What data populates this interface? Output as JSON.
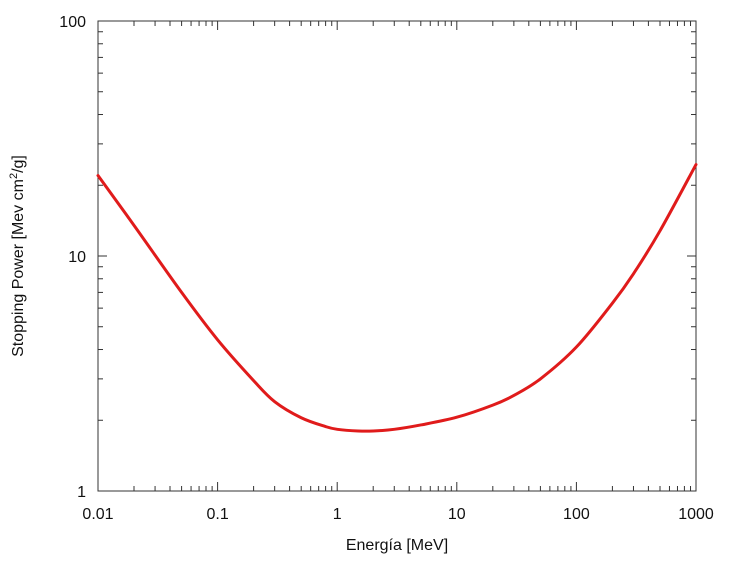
{
  "chart_data": {
    "type": "line",
    "title": "",
    "xlabel": "Energía [MeV]",
    "ylabel": {
      "main": "Stopping Power [Mev cm",
      "sup": "2",
      "tail": "/g]"
    },
    "x_scale": "log",
    "y_scale": "log",
    "xlim": [
      0.01,
      1000
    ],
    "ylim": [
      1,
      100
    ],
    "x_ticks": [
      0.01,
      0.1,
      1,
      10,
      100,
      1000
    ],
    "x_tick_labels": [
      "0.01",
      "0.1",
      "1",
      "10",
      "100",
      "1000"
    ],
    "y_ticks": [
      1,
      10,
      100
    ],
    "y_tick_labels": [
      "1",
      "10",
      "100"
    ],
    "grid": false,
    "legend": "none",
    "line_color": "#e01b1b",
    "series": [
      {
        "points": [
          [
            0.01,
            22.0
          ],
          [
            0.02,
            13.5
          ],
          [
            0.05,
            7.0
          ],
          [
            0.1,
            4.4
          ],
          [
            0.2,
            2.95
          ],
          [
            0.3,
            2.4
          ],
          [
            0.5,
            2.05
          ],
          [
            0.8,
            1.88
          ],
          [
            1.0,
            1.83
          ],
          [
            1.5,
            1.8
          ],
          [
            2.0,
            1.8
          ],
          [
            3.0,
            1.83
          ],
          [
            5.0,
            1.91
          ],
          [
            10.0,
            2.06
          ],
          [
            20.0,
            2.32
          ],
          [
            30.0,
            2.55
          ],
          [
            50.0,
            3.0
          ],
          [
            100.0,
            4.1
          ],
          [
            200.0,
            6.3
          ],
          [
            300.0,
            8.4
          ],
          [
            500.0,
            12.8
          ],
          [
            1000.0,
            24.5
          ]
        ]
      }
    ]
  }
}
